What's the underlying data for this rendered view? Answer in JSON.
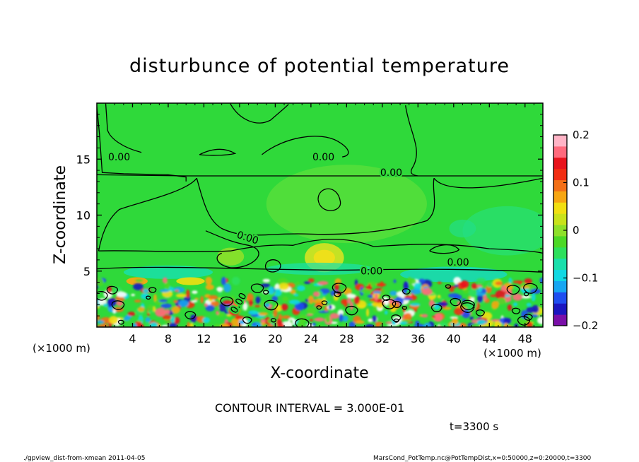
{
  "chart_data": {
    "type": "heatmap",
    "title": "disturbunce of potential temperature",
    "xlabel": "X-coordinate",
    "ylabel": "Z-coordinate",
    "x_unit_left": "(×1000 m)",
    "x_unit_right": "(×1000 m)",
    "xlim": [
      0,
      50
    ],
    "ylim": [
      0,
      20
    ],
    "x_ticks": [
      4,
      8,
      12,
      16,
      20,
      24,
      28,
      32,
      36,
      40,
      44,
      48
    ],
    "y_ticks": [
      5,
      10,
      15
    ],
    "colorbar": {
      "range": [
        -0.2,
        0.2
      ],
      "ticks": [
        {
          "value": 0.2,
          "label": "0.2"
        },
        {
          "value": 0.1,
          "label": "0.1"
        },
        {
          "value": 0,
          "label": "0"
        },
        {
          "value": -0.1,
          "label": "−0.1"
        },
        {
          "value": -0.2,
          "label": "−0.2"
        }
      ],
      "colors": [
        "#7a0fa8",
        "#1b16c0",
        "#1f4ef0",
        "#17a6f2",
        "#11d8e3",
        "#19dfab",
        "#2de05c",
        "#4cd826",
        "#8ee02a",
        "#c9e21b",
        "#f2df11",
        "#f7a612",
        "#f36f17",
        "#f12d12",
        "#e8131c",
        "#ff6a7d",
        "#ffb4c6"
      ]
    },
    "contour_labels": [
      "0.00",
      "0.00",
      "0.00",
      "0.00",
      "0.00",
      "0.00",
      "0.00"
    ],
    "contour_interval": "CONTOUR INTERVAL = 3.000E-01",
    "time_label": "t=3300 s"
  },
  "footer": {
    "left": "./gpview_dist-from-xmean   2011-04-05",
    "right": "MarsCond_PotTemp.nc@PotTempDist,x=0:50000,z=0:20000,t=3300"
  }
}
